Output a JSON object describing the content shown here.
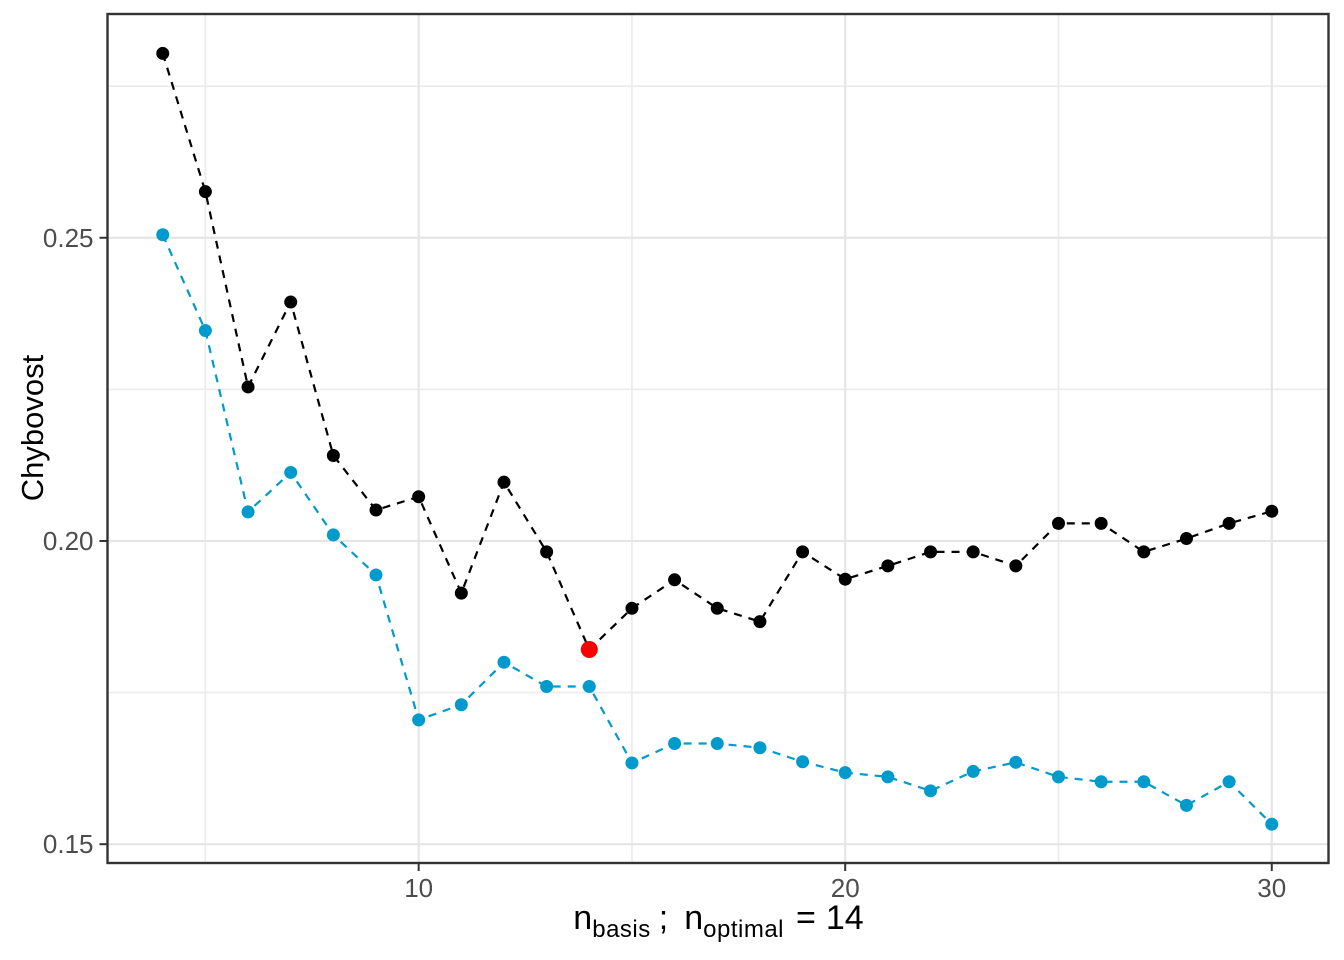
{
  "figure": {
    "background": "#ffffff",
    "panel_border_color": "#333333",
    "grid_major_color": "#e5e5e5",
    "grid_minor_color": "#ebebeb",
    "tick_mark_color": "#333333",
    "tick_label_color": "#4d4d4d",
    "axis_title_color": "#000000"
  },
  "chart_data": {
    "type": "line",
    "title": "",
    "ylabel": "Chybovost",
    "xlabel_rich": {
      "var1_base": "n",
      "var1_sub": "basis",
      "separator": ";",
      "var2_base": "n",
      "var2_sub": "optimal",
      "equals": "=",
      "optimal_value": "14"
    },
    "line_style": "dashed",
    "grid": "major+minor",
    "legend": "none",
    "x": [
      4,
      5,
      6,
      7,
      8,
      9,
      10,
      11,
      12,
      13,
      14,
      15,
      16,
      17,
      18,
      19,
      20,
      21,
      22,
      23,
      24,
      25,
      26,
      27,
      28,
      29,
      30
    ],
    "series": [
      {
        "name": "black-series",
        "color": "#000000",
        "point_radius": 6.5,
        "values": [
          0.2804,
          0.2576,
          0.2254,
          0.2394,
          0.2141,
          0.2051,
          0.2073,
          0.1914,
          0.2097,
          0.1982,
          0.1821,
          0.1889,
          0.1936,
          0.1889,
          0.1867,
          0.1982,
          0.1937,
          0.1959,
          0.1982,
          0.1982,
          0.1959,
          0.2029,
          0.2029,
          0.1982,
          0.2004,
          0.2029,
          0.2049
        ]
      },
      {
        "name": "blue-series",
        "color": "#009ACD",
        "point_radius": 6.5,
        "values": [
          0.2505,
          0.2347,
          0.2048,
          0.2113,
          0.201,
          0.1944,
          0.1705,
          0.173,
          0.18,
          0.176,
          0.176,
          0.1634,
          0.1666,
          0.1666,
          0.1659,
          0.1636,
          0.1618,
          0.1611,
          0.1588,
          0.162,
          0.1635,
          0.1611,
          0.1603,
          0.1603,
          0.1564,
          0.1603,
          0.1533
        ]
      }
    ],
    "highlight_point": {
      "series": "black-series",
      "x": 14,
      "value": 0.1821,
      "color": "#FF0000",
      "point_radius": 8.5
    },
    "axes": {
      "x_ticks": [
        10,
        20,
        30
      ],
      "x_tick_labels": [
        "10",
        "20",
        "30"
      ],
      "x_minor_ticks": [
        5,
        15,
        25
      ],
      "x_range": [
        2.705,
        31.33
      ],
      "y_ticks": [
        0.15,
        0.2,
        0.25
      ],
      "y_tick_labels": [
        "0.15",
        "0.20",
        "0.25"
      ],
      "y_minor_ticks": [
        0.175,
        0.225,
        0.275
      ],
      "y_range": [
        0.1469,
        0.2869
      ]
    }
  }
}
